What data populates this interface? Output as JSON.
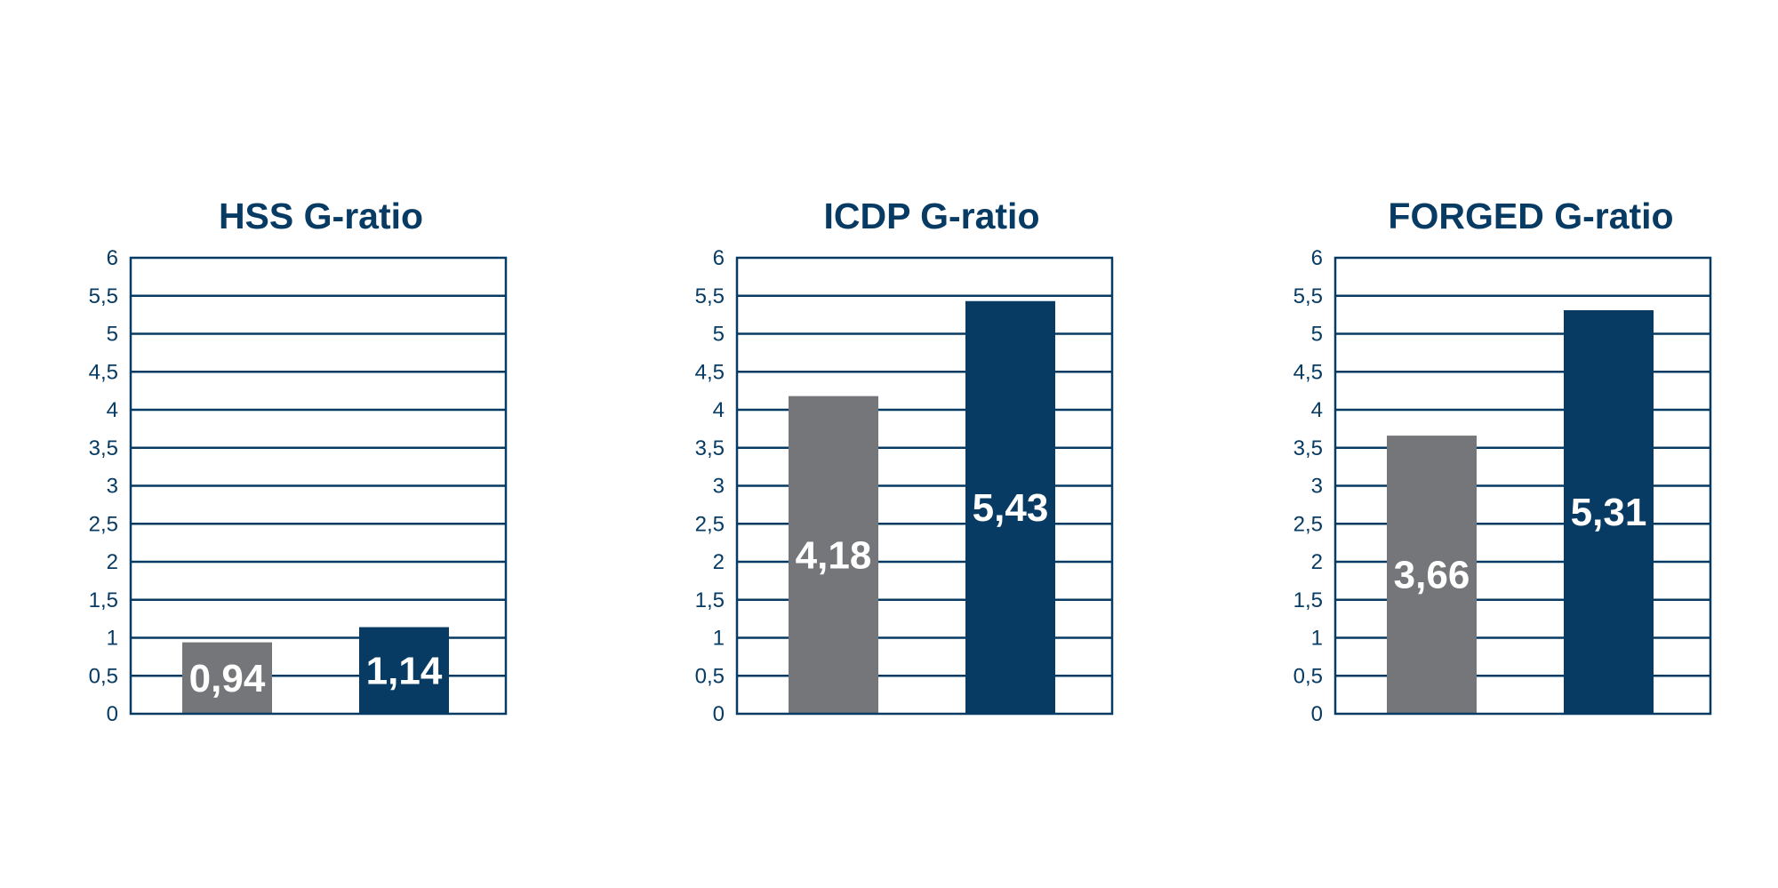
{
  "colors": {
    "navy": "#073B63",
    "gray": "#757679",
    "label": "#ffffff",
    "background": "#ffffff"
  },
  "chart_data": [
    {
      "type": "bar",
      "title": "HSS G-ratio",
      "categories": [
        "",
        ""
      ],
      "values": [
        0.94,
        1.14
      ],
      "value_labels": [
        "0,94",
        "1,14"
      ],
      "bar_colors": [
        "#757679",
        "#073B63"
      ],
      "ylim": [
        0,
        6
      ],
      "yticks": [
        0,
        0.5,
        1,
        1.5,
        2,
        2.5,
        3,
        3.5,
        4,
        4.5,
        5,
        5.5,
        6
      ],
      "ytick_labels": [
        "0",
        "0,5",
        "1",
        "1,5",
        "2",
        "2,5",
        "3",
        "3,5",
        "4",
        "4,5",
        "5",
        "5,5",
        "6"
      ],
      "grid": true,
      "xlabel": "",
      "ylabel": ""
    },
    {
      "type": "bar",
      "title": "ICDP G-ratio",
      "categories": [
        "",
        ""
      ],
      "values": [
        4.18,
        5.43
      ],
      "value_labels": [
        "4,18",
        "5,43"
      ],
      "bar_colors": [
        "#757679",
        "#073B63"
      ],
      "ylim": [
        0,
        6
      ],
      "yticks": [
        0,
        0.5,
        1,
        1.5,
        2,
        2.5,
        3,
        3.5,
        4,
        4.5,
        5,
        5.5,
        6
      ],
      "ytick_labels": [
        "0",
        "0,5",
        "1",
        "1,5",
        "2",
        "2,5",
        "3",
        "3,5",
        "4",
        "4,5",
        "5",
        "5,5",
        "6"
      ],
      "grid": true,
      "xlabel": "",
      "ylabel": ""
    },
    {
      "type": "bar",
      "title": "FORGED G-ratio",
      "categories": [
        "",
        ""
      ],
      "values": [
        3.66,
        5.31
      ],
      "value_labels": [
        "3,66",
        "5,31"
      ],
      "bar_colors": [
        "#757679",
        "#073B63"
      ],
      "ylim": [
        0,
        6
      ],
      "yticks": [
        0,
        0.5,
        1,
        1.5,
        2,
        2.5,
        3,
        3.5,
        4,
        4.5,
        5,
        5.5,
        6
      ],
      "ytick_labels": [
        "0",
        "0,5",
        "1",
        "1,5",
        "2",
        "2,5",
        "3",
        "3,5",
        "4",
        "4,5",
        "5",
        "5,5",
        "6"
      ],
      "grid": true,
      "xlabel": "",
      "ylabel": ""
    }
  ]
}
